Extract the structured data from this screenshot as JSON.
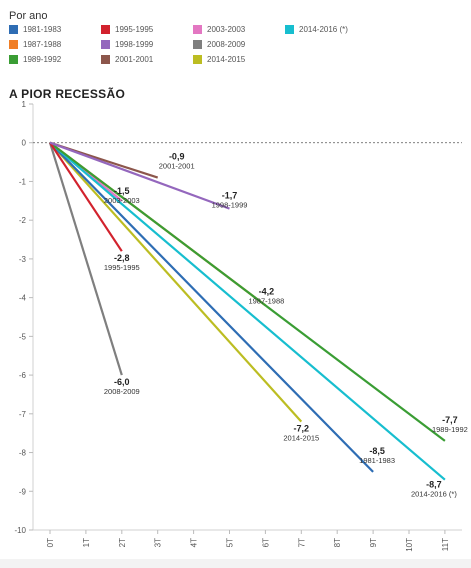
{
  "legend_title": "Por ano",
  "chart_title": "A PIOR RECESSÃO",
  "chart_data": {
    "type": "line",
    "title": "A PIOR RECESSÃO",
    "xlabel": "",
    "ylabel": "",
    "x_ticks": [
      "0T",
      "1T",
      "2T",
      "3T",
      "4T",
      "5T",
      "6T",
      "7T",
      "8T",
      "9T",
      "10T",
      "11T"
    ],
    "y_ticks": [
      1,
      0,
      -1,
      -2,
      -3,
      -4,
      -5,
      -6,
      -7,
      -8,
      -9,
      -10
    ],
    "ylim": [
      -10,
      1
    ],
    "xlim": [
      0,
      11
    ],
    "zero_line": "dashed",
    "series": [
      {
        "name": "1981-1983",
        "color": "#2e6db4",
        "x": [
          0,
          9
        ],
        "y": [
          0,
          -8.5
        ],
        "end_value": "-8,5"
      },
      {
        "name": "1987-1988",
        "color": "#f07e26",
        "x": [
          0,
          6
        ],
        "y": [
          0,
          -4.2
        ],
        "end_value": "-4,2"
      },
      {
        "name": "1989-1992",
        "color": "#3a9d34",
        "x": [
          0,
          11
        ],
        "y": [
          0,
          -7.7
        ],
        "end_value": "-7,7"
      },
      {
        "name": "1995-1995",
        "color": "#d2222d",
        "x": [
          0,
          2
        ],
        "y": [
          0,
          -2.8
        ],
        "end_value": "-2,8"
      },
      {
        "name": "1998-1999",
        "color": "#9467bd",
        "x": [
          0,
          5
        ],
        "y": [
          0,
          -1.7
        ],
        "end_value": "-1,7"
      },
      {
        "name": "2001-2001",
        "color": "#8c564b",
        "x": [
          0,
          3
        ],
        "y": [
          0,
          -0.9
        ],
        "end_value": "-0,9"
      },
      {
        "name": "2003-2003",
        "color": "#e377c2",
        "x": [
          0,
          2
        ],
        "y": [
          0,
          -1.5
        ],
        "end_value": "-1,5"
      },
      {
        "name": "2008-2009",
        "color": "#7f7f7f",
        "x": [
          0,
          2
        ],
        "y": [
          0,
          -6.0
        ],
        "end_value": "-6,0"
      },
      {
        "name": "2014-2015",
        "color": "#bcbd22",
        "x": [
          0,
          7
        ],
        "y": [
          0,
          -7.2
        ],
        "end_value": "-7,2"
      },
      {
        "name": "2014-2016 (*)",
        "color": "#17becf",
        "x": [
          0,
          11
        ],
        "y": [
          0,
          -8.7
        ],
        "end_value": "-8,7"
      }
    ]
  }
}
